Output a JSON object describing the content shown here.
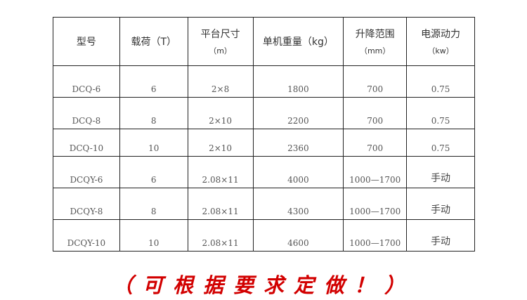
{
  "table": {
    "headers": [
      {
        "label": "型号",
        "unit": ""
      },
      {
        "label": "载荷（T）",
        "unit": ""
      },
      {
        "label": "平台尺寸",
        "unit": "（m）"
      },
      {
        "label": "单机重量（kg）",
        "unit": ""
      },
      {
        "label": "升降范围",
        "unit": "（mm）"
      },
      {
        "label": "电源动力",
        "unit": "（kw）"
      }
    ],
    "rows": [
      [
        "DCQ-6",
        "6",
        "2×8",
        "1800",
        "700",
        "0.75"
      ],
      [
        "DCQ-8",
        "8",
        "2×10",
        "2200",
        "700",
        "0.75"
      ],
      [
        "DCQ-10",
        "10",
        "2×10",
        "2360",
        "700",
        "0.75"
      ],
      [
        "DCQY-6",
        "6",
        "2.08×11",
        "4000",
        "1000—1700",
        "手动"
      ],
      [
        "DCQY-8",
        "8",
        "2.08×11",
        "4300",
        "1000—1700",
        "手动"
      ],
      [
        "DCQY-10",
        "10",
        "2.08×11",
        "4600",
        "1000—1700",
        "手动"
      ]
    ]
  },
  "note": "（可根据要求定做！）",
  "colors": {
    "note": "#d20000",
    "border": "#222222"
  }
}
